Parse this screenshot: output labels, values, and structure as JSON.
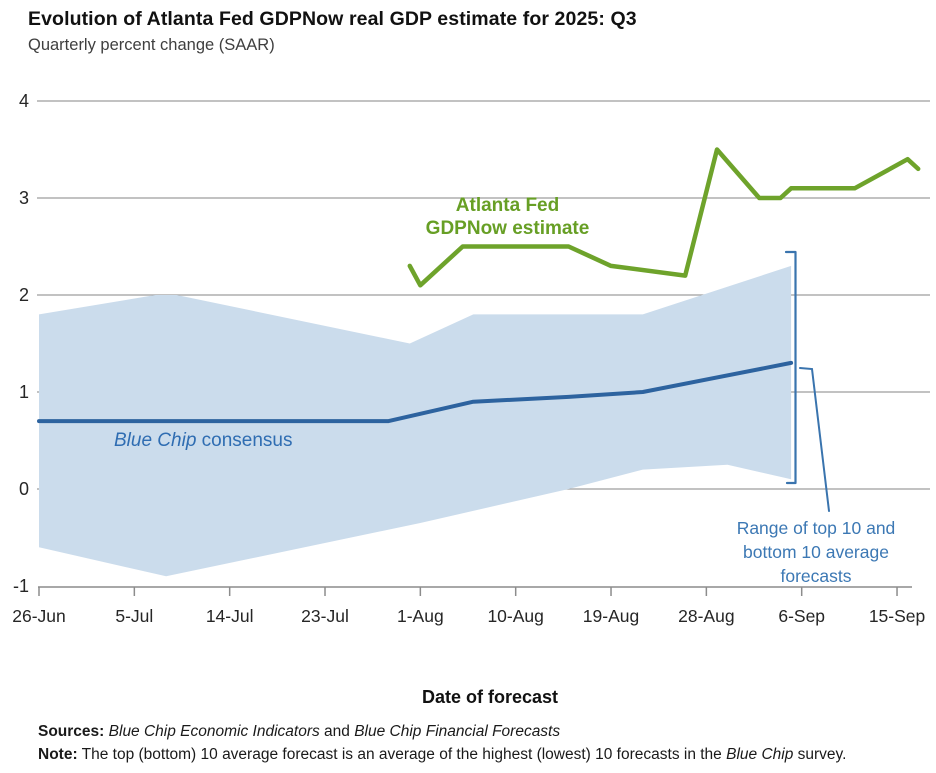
{
  "header": {
    "title": "Evolution of Atlanta Fed GDPNow real GDP estimate for 2025: Q3",
    "subtitle": "Quarterly percent change (SAAR)"
  },
  "chart_data": {
    "type": "line",
    "title": "Evolution of Atlanta Fed GDPNow real GDP estimate for 2025: Q3",
    "subtitle": "Quarterly percent change (SAAR)",
    "xlabel": "Date of forecast",
    "ylabel": "Quarterly percent change (SAAR)",
    "ylim": [
      -1,
      4
    ],
    "yticks": [
      4,
      3,
      2,
      1,
      0,
      -1
    ],
    "grid": "horizontal gridlines on",
    "legend_position": "in-chart text annotations",
    "x_ticks": [
      {
        "label": "26-Jun",
        "day": 0
      },
      {
        "label": "5-Jul",
        "day": 9
      },
      {
        "label": "14-Jul",
        "day": 18
      },
      {
        "label": "23-Jul",
        "day": 27
      },
      {
        "label": "1-Aug",
        "day": 36
      },
      {
        "label": "10-Aug",
        "day": 45
      },
      {
        "label": "19-Aug",
        "day": 54
      },
      {
        "label": "28-Aug",
        "day": 63
      },
      {
        "label": "6-Sep",
        "day": 72
      },
      {
        "label": "15-Sep",
        "day": 81
      }
    ],
    "series": [
      {
        "name": "Atlanta Fed GDPNow estimate",
        "color": "#6ea32b",
        "points": [
          {
            "date": "31-Jul",
            "day": 35,
            "value": 2.3
          },
          {
            "date": "1-Aug",
            "day": 36,
            "value": 2.1
          },
          {
            "date": "5-Aug",
            "day": 40,
            "value": 2.5
          },
          {
            "date": "15-Aug",
            "day": 50,
            "value": 2.5
          },
          {
            "date": "19-Aug",
            "day": 54,
            "value": 2.3
          },
          {
            "date": "26-Aug",
            "day": 61,
            "value": 2.2
          },
          {
            "date": "29-Aug",
            "day": 64,
            "value": 3.5
          },
          {
            "date": "2-Sep",
            "day": 68,
            "value": 3.0
          },
          {
            "date": "4-Sep",
            "day": 70,
            "value": 3.0
          },
          {
            "date": "5-Sep",
            "day": 71,
            "value": 3.1
          },
          {
            "date": "11-Sep",
            "day": 77,
            "value": 3.1
          },
          {
            "date": "16-Sep",
            "day": 82,
            "value": 3.4
          },
          {
            "date": "17-Sep",
            "day": 83,
            "value": 3.3
          }
        ]
      },
      {
        "name": "Blue Chip consensus",
        "color": "#2d639f",
        "points": [
          {
            "date": "26-Jun",
            "day": 0,
            "value": 0.7
          },
          {
            "date": "29-Jul",
            "day": 33,
            "value": 0.7
          },
          {
            "date": "6-Aug",
            "day": 41,
            "value": 0.9
          },
          {
            "date": "15-Aug",
            "day": 50,
            "value": 0.95
          },
          {
            "date": "22-Aug",
            "day": 57,
            "value": 1.0
          },
          {
            "date": "5-Sep",
            "day": 71,
            "value": 1.3
          }
        ]
      }
    ],
    "band": {
      "name": "Range of top 10 and bottom 10 average forecasts",
      "color": "#cbdcec",
      "top_points": [
        {
          "date": "26-Jun",
          "day": 0,
          "value": 1.8
        },
        {
          "date": "7-Jul",
          "day": 11,
          "value": 2.0
        },
        {
          "date": "9-Jul",
          "day": 13,
          "value": 2.0
        },
        {
          "date": "31-Jul",
          "day": 35,
          "value": 1.5
        },
        {
          "date": "6-Aug",
          "day": 41,
          "value": 1.8
        },
        {
          "date": "22-Aug",
          "day": 57,
          "value": 1.8
        },
        {
          "date": "5-Sep",
          "day": 71,
          "value": 2.3
        }
      ],
      "bottom_points": [
        {
          "date": "26-Jun",
          "day": 0,
          "value": -0.6
        },
        {
          "date": "8-Jul",
          "day": 12,
          "value": -0.9
        },
        {
          "date": "1-Aug",
          "day": 36,
          "value": -0.35
        },
        {
          "date": "15-Aug",
          "day": 50,
          "value": 0.0
        },
        {
          "date": "22-Aug",
          "day": 57,
          "value": 0.2
        },
        {
          "date": "30-Aug",
          "day": 65,
          "value": 0.25
        },
        {
          "date": "5-Sep",
          "day": 71,
          "value": 0.1
        }
      ]
    }
  },
  "annotations": {
    "gdpnow_label_line1": "Atlanta Fed",
    "gdpnow_label_line2": "GDPNow estimate",
    "bluechip_label_parts": [
      {
        "t": "Blue Chip",
        "i": true,
        "n": "bluechip-label-italic"
      },
      {
        "t": " consensus",
        "n": "bluechip-label-regular"
      }
    ],
    "range_label_line1": "Range of top 10 and",
    "range_label_line2": "bottom 10 average",
    "range_label_line3": "forecasts"
  },
  "footer": {
    "sources_parts": [
      {
        "t": "Sources:",
        "b": true,
        "n": "sources-prefix"
      },
      {
        "t": " ",
        "n": "space"
      },
      {
        "t": "Blue Chip Economic Indicators",
        "i": true,
        "n": "source-1"
      },
      {
        "t": " and ",
        "n": "sources-and"
      },
      {
        "t": "Blue Chip Financial Forecasts",
        "i": true,
        "n": "source-2"
      }
    ],
    "note_parts": [
      {
        "t": "Note:",
        "b": true,
        "n": "note-prefix"
      },
      {
        "t": " The top (bottom) 10 average forecast is an average of the highest (lowest) 10 forecasts in the ",
        "n": "note-body"
      },
      {
        "t": "Blue Chip",
        "i": true,
        "n": "note-bluechip"
      },
      {
        "t": " survey.",
        "n": "note-end"
      }
    ]
  },
  "colors": {
    "gdpnow_line": "#6ea32b",
    "gdpnow_label_text": "#679f25",
    "bluechip_line": "#2d639f",
    "bluechip_label_text": "#2f6db2",
    "band_fill": "#cbdcec",
    "range_label_text": "#3c78b4",
    "bracket": "#3a74ae",
    "gridline": "#9e9e9e",
    "axis": "#8c8c8c",
    "tick_label": "#262626"
  }
}
